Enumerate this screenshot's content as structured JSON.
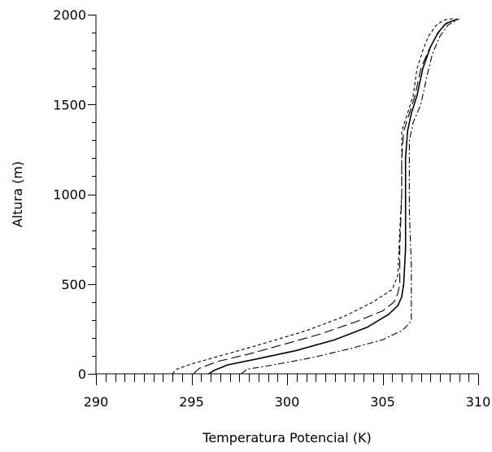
{
  "chart_data": {
    "type": "line",
    "title": "",
    "xlabel": "Temperatura Potencial (K)",
    "ylabel": "Altura (m)",
    "xlim": [
      290,
      310
    ],
    "ylim": [
      0,
      2000
    ],
    "x_major_ticks": [
      290,
      295,
      300,
      305,
      310
    ],
    "x_minor_step": 0.5,
    "y_major_ticks": [
      0,
      500,
      1000,
      1500,
      2000
    ],
    "y_minor_step": 100,
    "x_tick_labels": [
      "290",
      "295",
      "300",
      "305",
      "310"
    ],
    "y_tick_labels": [
      "0",
      "500",
      "1000",
      "1500",
      "2000"
    ],
    "grid": false,
    "legend": "none",
    "series": [
      {
        "line_style": "solid",
        "color": "#000000",
        "points": [
          [
            295.9,
            0
          ],
          [
            296.2,
            20
          ],
          [
            296.9,
            50
          ],
          [
            298.5,
            85
          ],
          [
            300.5,
            130
          ],
          [
            302.5,
            190
          ],
          [
            304.2,
            260
          ],
          [
            305.3,
            330
          ],
          [
            305.8,
            380
          ],
          [
            306.0,
            430
          ],
          [
            306.1,
            500
          ],
          [
            306.2,
            700
          ],
          [
            306.2,
            1000
          ],
          [
            306.2,
            1200
          ],
          [
            306.3,
            1350
          ],
          [
            306.5,
            1450
          ],
          [
            306.8,
            1550
          ],
          [
            307.1,
            1700
          ],
          [
            307.5,
            1820
          ],
          [
            307.9,
            1900
          ],
          [
            308.3,
            1950
          ],
          [
            308.9,
            1975
          ]
        ]
      },
      {
        "line_style": "dashed-long",
        "color": "#000000",
        "points": [
          [
            295.1,
            0
          ],
          [
            295.4,
            30
          ],
          [
            296.4,
            70
          ],
          [
            298.0,
            110
          ],
          [
            299.7,
            160
          ],
          [
            301.7,
            220
          ],
          [
            303.6,
            290
          ],
          [
            305.0,
            350
          ],
          [
            305.6,
            400
          ],
          [
            305.8,
            450
          ],
          [
            305.9,
            500
          ],
          [
            305.9,
            700
          ],
          [
            306.0,
            1000
          ],
          [
            306.0,
            1200
          ],
          [
            306.1,
            1350
          ],
          [
            306.4,
            1450
          ],
          [
            306.7,
            1550
          ],
          [
            307.0,
            1700
          ],
          [
            307.4,
            1800
          ],
          [
            307.8,
            1880
          ],
          [
            308.2,
            1940
          ],
          [
            308.6,
            1965
          ],
          [
            309.0,
            1975
          ]
        ]
      },
      {
        "line_style": "dashed-short",
        "color": "#000000",
        "points": [
          [
            294.0,
            0
          ],
          [
            294.2,
            25
          ],
          [
            295.0,
            55
          ],
          [
            296.5,
            100
          ],
          [
            298.5,
            160
          ],
          [
            301.0,
            240
          ],
          [
            303.0,
            320
          ],
          [
            304.5,
            400
          ],
          [
            305.5,
            470
          ],
          [
            305.8,
            550
          ],
          [
            305.9,
            800
          ],
          [
            306.0,
            1000
          ],
          [
            306.0,
            1200
          ],
          [
            306.0,
            1350
          ],
          [
            306.3,
            1450
          ],
          [
            306.6,
            1550
          ],
          [
            306.8,
            1700
          ],
          [
            307.1,
            1800
          ],
          [
            307.4,
            1880
          ],
          [
            307.8,
            1940
          ],
          [
            308.2,
            1970
          ],
          [
            308.8,
            1980
          ]
        ]
      },
      {
        "line_style": "dash-dot",
        "color": "#000000",
        "points": [
          [
            297.6,
            0
          ],
          [
            297.9,
            25
          ],
          [
            299.3,
            50
          ],
          [
            301.3,
            90
          ],
          [
            303.3,
            140
          ],
          [
            305.0,
            190
          ],
          [
            306.0,
            240
          ],
          [
            306.4,
            280
          ],
          [
            306.5,
            300
          ],
          [
            306.5,
            400
          ],
          [
            306.5,
            600
          ],
          [
            306.4,
            900
          ],
          [
            306.4,
            1100
          ],
          [
            306.4,
            1300
          ],
          [
            306.6,
            1400
          ],
          [
            307.0,
            1500
          ],
          [
            307.3,
            1650
          ],
          [
            307.6,
            1780
          ],
          [
            308.0,
            1880
          ],
          [
            308.4,
            1940
          ],
          [
            308.7,
            1960
          ],
          [
            309.0,
            1975
          ]
        ]
      }
    ]
  }
}
